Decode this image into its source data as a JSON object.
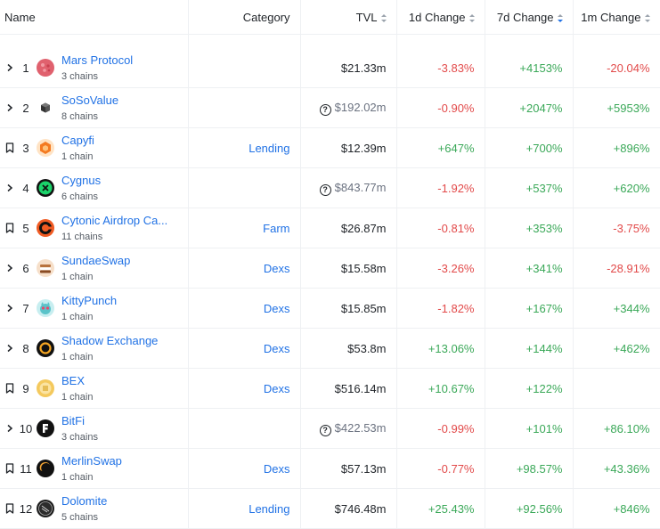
{
  "header": {
    "name": "Name",
    "category": "Category",
    "tvl": "TVL",
    "d1": "1d Change",
    "d7": "7d Change",
    "m1": "1m Change"
  },
  "colors": {
    "accent": "#2172e5",
    "positive": "#3aa858",
    "negative": "#e24a4a"
  },
  "rows": [
    {
      "rank": "1",
      "name": "Mars Protocol",
      "chains": "3 chains",
      "category": "",
      "tvl": "$21.33m",
      "tvl_unverified": false,
      "d1": "-3.83%",
      "d7": "+4153%",
      "m1": "-20.04%",
      "ctrl": "chevron",
      "logo": "mars-logo"
    },
    {
      "rank": "2",
      "name": "SoSoValue",
      "chains": "8 chains",
      "category": "",
      "tvl": "$192.02m",
      "tvl_unverified": true,
      "d1": "-0.90%",
      "d7": "+2047%",
      "m1": "+5953%",
      "ctrl": "chevron",
      "logo": "sosovalue-logo"
    },
    {
      "rank": "3",
      "name": "Capyfi",
      "chains": "1 chain",
      "category": "Lending",
      "tvl": "$12.39m",
      "tvl_unverified": false,
      "d1": "+647%",
      "d7": "+700%",
      "m1": "+896%",
      "ctrl": "bookmark",
      "logo": "capyfi-logo"
    },
    {
      "rank": "4",
      "name": "Cygnus",
      "chains": "6 chains",
      "category": "",
      "tvl": "$843.77m",
      "tvl_unverified": true,
      "d1": "-1.92%",
      "d7": "+537%",
      "m1": "+620%",
      "ctrl": "chevron",
      "logo": "cygnus-logo"
    },
    {
      "rank": "5",
      "name": "Cytonic Airdrop Ca...",
      "chains": "11 chains",
      "category": "Farm",
      "tvl": "$26.87m",
      "tvl_unverified": false,
      "d1": "-0.81%",
      "d7": "+353%",
      "m1": "-3.75%",
      "ctrl": "bookmark",
      "logo": "cytonic-logo"
    },
    {
      "rank": "6",
      "name": "SundaeSwap",
      "chains": "1 chain",
      "category": "Dexs",
      "tvl": "$15.58m",
      "tvl_unverified": false,
      "d1": "-3.26%",
      "d7": "+341%",
      "m1": "-28.91%",
      "ctrl": "chevron",
      "logo": "sundaeswap-logo"
    },
    {
      "rank": "7",
      "name": "KittyPunch",
      "chains": "1 chain",
      "category": "Dexs",
      "tvl": "$15.85m",
      "tvl_unverified": false,
      "d1": "-1.82%",
      "d7": "+167%",
      "m1": "+344%",
      "ctrl": "chevron",
      "logo": "kittypunch-logo"
    },
    {
      "rank": "8",
      "name": "Shadow Exchange",
      "chains": "1 chain",
      "category": "Dexs",
      "tvl": "$53.8m",
      "tvl_unverified": false,
      "d1": "+13.06%",
      "d7": "+144%",
      "m1": "+462%",
      "ctrl": "chevron",
      "logo": "shadow-logo"
    },
    {
      "rank": "9",
      "name": "BEX",
      "chains": "1 chain",
      "category": "Dexs",
      "tvl": "$516.14m",
      "tvl_unverified": false,
      "d1": "+10.67%",
      "d7": "+122%",
      "m1": "",
      "ctrl": "bookmark",
      "logo": "bex-logo"
    },
    {
      "rank": "10",
      "name": "BitFi",
      "chains": "3 chains",
      "category": "",
      "tvl": "$422.53m",
      "tvl_unverified": true,
      "d1": "-0.99%",
      "d7": "+101%",
      "m1": "+86.10%",
      "ctrl": "chevron",
      "logo": "bitfi-logo"
    },
    {
      "rank": "11",
      "name": "MerlinSwap",
      "chains": "1 chain",
      "category": "Dexs",
      "tvl": "$57.13m",
      "tvl_unverified": false,
      "d1": "-0.77%",
      "d7": "+98.57%",
      "m1": "+43.36%",
      "ctrl": "bookmark",
      "logo": "merlinswap-logo"
    },
    {
      "rank": "12",
      "name": "Dolomite",
      "chains": "5 chains",
      "category": "Lending",
      "tvl": "$746.48m",
      "tvl_unverified": false,
      "d1": "+25.43%",
      "d7": "+92.56%",
      "m1": "+846%",
      "ctrl": "bookmark",
      "logo": "dolomite-logo"
    }
  ]
}
